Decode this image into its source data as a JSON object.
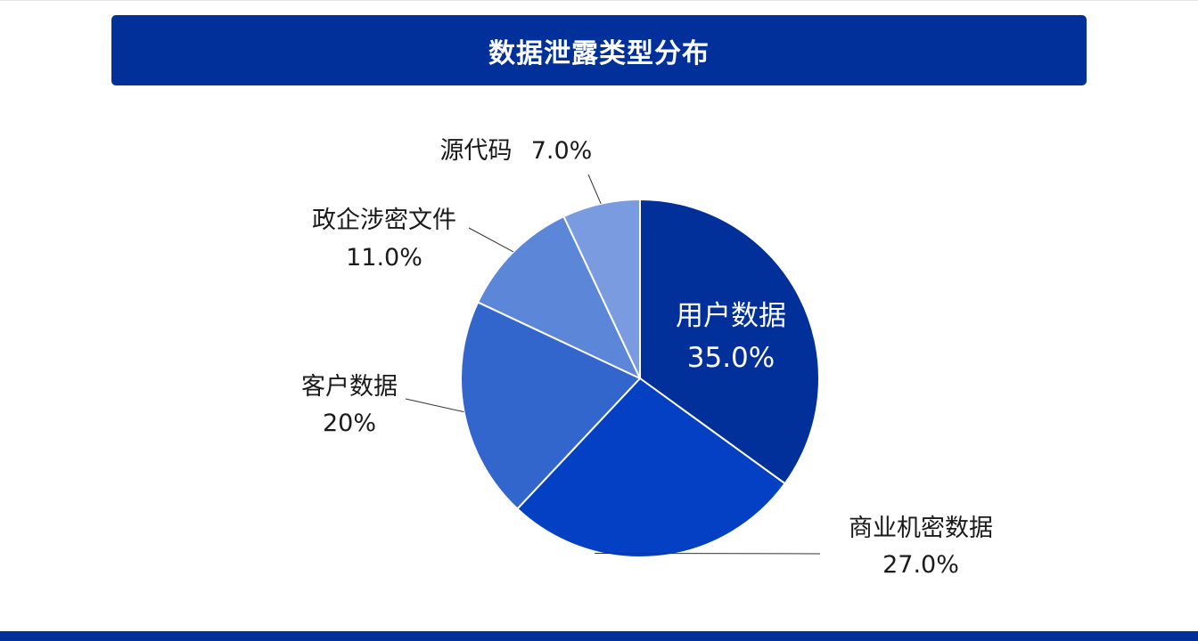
{
  "header": {
    "title": "数据泄露类型分布"
  },
  "colors": {
    "title_bg": "#02309b",
    "bottom_bar": "#02309b"
  },
  "chart_data": {
    "type": "pie",
    "title": "数据泄露类型分布",
    "slices": [
      {
        "name": "用户数据",
        "value": 35.0,
        "label_pct": "35.0%",
        "color": "#02309b"
      },
      {
        "name": "商业机密数据",
        "value": 27.0,
        "label_pct": "27.0%",
        "color": "#0440c4"
      },
      {
        "name": "客户数据",
        "value": 20.0,
        "label_pct": "20%",
        "color": "#3366cc"
      },
      {
        "name": "政企涉密文件",
        "value": 11.0,
        "label_pct": "11.0%",
        "color": "#5c87d8"
      },
      {
        "name": "源代码",
        "value": 7.0,
        "label_pct": "7.0%",
        "color": "#7a9be0"
      }
    ]
  }
}
